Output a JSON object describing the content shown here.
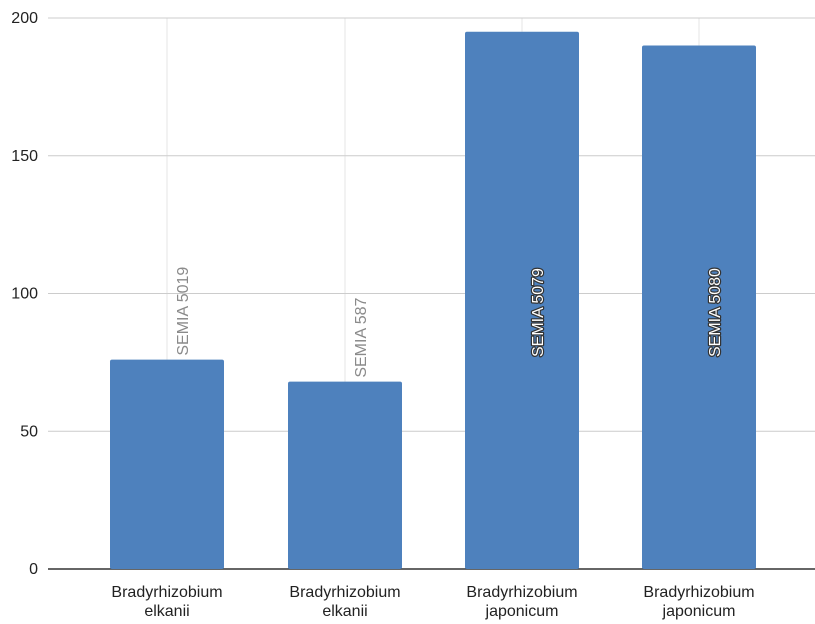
{
  "chart_data": {
    "type": "bar",
    "categories": [
      [
        "Bradyrhizobium",
        "elkanii"
      ],
      [
        "Bradyrhizobium",
        "elkanii"
      ],
      [
        "Bradyrhizobium",
        "japonicum"
      ],
      [
        "Bradyrhizobium",
        "japonicum"
      ]
    ],
    "values": [
      76,
      68,
      195,
      190
    ],
    "bar_labels": [
      "SEMIA 5019",
      "SEMIA 587",
      "SEMIA 5079",
      "SEMIA 5080"
    ],
    "bar_label_style": [
      "gray-above",
      "gray-above",
      "white-inside",
      "white-inside"
    ],
    "ylim": [
      0,
      200
    ],
    "yticks": [
      0,
      50,
      100,
      150,
      200
    ],
    "title": "",
    "xlabel": "",
    "ylabel": "",
    "grid": true,
    "colors": {
      "bar": "#4e81bd",
      "grid": "#cccccc",
      "vgrid": "#e6e6e6",
      "axis": "#333333"
    }
  }
}
